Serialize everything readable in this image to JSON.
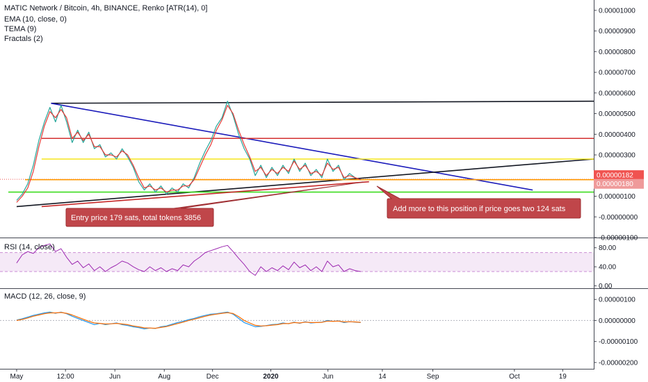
{
  "chart_data": [
    {
      "type": "line",
      "panel": "price",
      "title": "MATIC Network / Bitcoin, 4h, BINANCE, Renko [ATR(14), 0]",
      "indicators": [
        "EMA (10, close, 0)",
        "TEMA (9)",
        "Fractals (2)"
      ],
      "ylim": [
        -1e-06,
        1.05e-05
      ],
      "y_ticks": [
        "0.00001000",
        "0.00000900",
        "0.00000800",
        "0.00000700",
        "0.00000600",
        "0.00000500",
        "0.00000400",
        "0.00000300",
        "0.00000200",
        "0.00000100",
        "-0.00000000",
        "-0.00000100"
      ],
      "y_tick_values": [
        1e-05,
        9e-06,
        8e-06,
        7e-06,
        6e-06,
        5e-06,
        4e-06,
        3e-06,
        2e-06,
        1e-06,
        0.0,
        -1e-06
      ],
      "x_ticks": [
        "May",
        "12:00",
        "Jun",
        "Aug",
        "Dec",
        "2020",
        "Jun",
        "14",
        "Sep",
        "Oct",
        "19"
      ],
      "x_tick_index": [
        0,
        8.8,
        17.7,
        26.6,
        35.3,
        45.8,
        56.1,
        65.9,
        75.0,
        89.7,
        98.4
      ],
      "x_range": [
        -3,
        104
      ],
      "series_x": [
        0,
        1,
        2,
        3,
        4,
        5,
        6,
        7,
        8,
        9,
        10,
        11,
        12,
        13,
        14,
        15,
        16,
        17,
        18,
        19,
        20,
        21,
        22,
        23,
        24,
        25,
        26,
        27,
        28,
        29,
        30,
        31,
        32,
        33,
        34,
        35,
        36,
        37,
        38,
        39,
        40,
        41,
        42,
        43,
        44,
        45,
        46,
        47,
        48,
        49,
        50,
        51,
        52,
        53,
        54,
        55,
        56,
        57,
        58,
        59,
        60,
        61,
        62
      ],
      "series": [
        {
          "name": "",
          "color": "#26a69a",
          "values": [
            8e-07,
            1.1e-06,
            1.6e-06,
            2.5e-06,
            3.7e-06,
            4.6e-06,
            5.3e-06,
            4.6e-06,
            5.4e-06,
            4.6e-06,
            3.6e-06,
            4.2e-06,
            3.6e-06,
            4.1e-06,
            3.3e-06,
            3.5e-06,
            2.9e-06,
            3.1e-06,
            2.8e-06,
            3.3e-06,
            2.9e-06,
            2.4e-06,
            1.7e-06,
            1.3e-06,
            1.6e-06,
            1.2e-06,
            1.5e-06,
            1.1e-06,
            1.4e-06,
            1.2e-06,
            1.6e-06,
            1.4e-06,
            1.9e-06,
            2.6e-06,
            3.2e-06,
            3.7e-06,
            4.4e-06,
            4.8e-06,
            5.6e-06,
            4.9e-06,
            4e-06,
            3.3e-06,
            2.8e-06,
            2e-06,
            2.5e-06,
            1.9e-06,
            2.4e-06,
            2e-06,
            2.5e-06,
            2.1e-06,
            2.8e-06,
            2.2e-06,
            2.6e-06,
            2e-06,
            2.3e-06,
            1.9e-06,
            2.8e-06,
            2.2e-06,
            2.5e-06,
            1.8e-06,
            2.1e-06,
            1.9e-06,
            1.8e-06
          ]
        },
        {
          "name": "",
          "color": "#e53935",
          "values": [
            7e-07,
            1e-06,
            1.4e-06,
            2.2e-06,
            3.4e-06,
            4.4e-06,
            5.1e-06,
            4.8e-06,
            5.2e-06,
            4.8e-06,
            3.8e-06,
            4.1e-06,
            3.7e-06,
            4e-06,
            3.4e-06,
            3.4e-06,
            3e-06,
            3e-06,
            2.9e-06,
            3.2e-06,
            3e-06,
            2.5e-06,
            1.9e-06,
            1.4e-06,
            1.5e-06,
            1.3e-06,
            1.4e-06,
            1.2e-06,
            1.3e-06,
            1.3e-06,
            1.5e-06,
            1.5e-06,
            1.8e-06,
            2.4e-06,
            3e-06,
            3.5e-06,
            4.2e-06,
            4.7e-06,
            5.4e-06,
            5e-06,
            4.2e-06,
            3.5e-06,
            2.9e-06,
            2.2e-06,
            2.4e-06,
            2e-06,
            2.3e-06,
            2.1e-06,
            2.4e-06,
            2.2e-06,
            2.7e-06,
            2.3e-06,
            2.5e-06,
            2.1e-06,
            2.2e-06,
            2e-06,
            2.6e-06,
            2.3e-06,
            2.4e-06,
            1.9e-06,
            2e-06,
            1.9e-06,
            1.8e-06
          ]
        }
      ],
      "trendlines": [
        {
          "color": "#131722",
          "x": [
            6.2,
            104
          ],
          "y": [
            5.5e-06,
            5.6e-06
          ]
        },
        {
          "color": "#1a1aba",
          "x": [
            6.2,
            93
          ],
          "y": [
            5.5e-06,
            1.3e-06
          ]
        },
        {
          "color": "#131722",
          "x": [
            0,
            104
          ],
          "y": [
            5e-07,
            2.8e-06
          ]
        },
        {
          "color": "#d32f2f",
          "x": [
            4.5,
            104
          ],
          "y": [
            3.8e-06,
            3.8e-06
          ]
        },
        {
          "color": "#f5e61b",
          "x": [
            4.5,
            104
          ],
          "y": [
            2.8e-06,
            2.8e-06
          ]
        },
        {
          "color": "#ff9800",
          "x": [
            1.5,
            104
          ],
          "y": [
            1.8e-06,
            1.8e-06
          ]
        },
        {
          "color": "#3bdc1e",
          "x": [
            -1.5,
            104
          ],
          "y": [
            1.2e-06,
            1.2e-06
          ]
        },
        {
          "color": "#c62828",
          "x": [
            4.5,
            63.5
          ],
          "y": [
            5e-07,
            1.7e-06
          ]
        }
      ],
      "price_labels": [
        {
          "value": 1.82e-06,
          "text": "0.00000182",
          "color": "#f05350"
        },
        {
          "value": 1.8e-06,
          "text": "0.00000180",
          "color": "#ef9a9a"
        }
      ],
      "annotations": [
        {
          "text": "Entry price 179 sats, total tokens 3856",
          "color": "#c0464a"
        },
        {
          "text": "Add more to this position if price goes two 124 sats",
          "color": "#c0464a"
        }
      ]
    },
    {
      "type": "line",
      "panel": "rsi",
      "title": "RSI (14, close)",
      "ylim": [
        -5,
        100
      ],
      "y_ticks": [
        "80.00",
        "40.00",
        "0.00"
      ],
      "y_tick_values": [
        80,
        40,
        0
      ],
      "band": [
        30,
        70
      ],
      "series": [
        {
          "name": "",
          "color": "#9c27b0",
          "values": [
            48,
            65,
            72,
            68,
            80,
            85,
            88,
            72,
            78,
            60,
            45,
            52,
            38,
            46,
            32,
            40,
            30,
            38,
            44,
            52,
            48,
            40,
            34,
            30,
            40,
            32,
            38,
            30,
            36,
            32,
            44,
            40,
            52,
            60,
            70,
            74,
            78,
            82,
            85,
            72,
            58,
            45,
            30,
            22,
            40,
            30,
            38,
            32,
            42,
            34,
            50,
            38,
            44,
            32,
            40,
            30,
            52,
            40,
            44,
            30,
            36,
            32,
            30
          ]
        }
      ]
    },
    {
      "type": "line",
      "panel": "macd",
      "title": "MACD (12, 26, close, 9)",
      "ylim": [
        -2.3e-06,
        1.5e-06
      ],
      "y_ticks": [
        "0.00000100",
        "0.00000000",
        "-0.00000100",
        "-0.00000200"
      ],
      "y_tick_values": [
        1e-06,
        0.0,
        -1e-06,
        -2e-06
      ],
      "series": [
        {
          "name": "",
          "color": "#2196f3",
          "values": [
            2e-08,
            8e-08,
            1.6e-07,
            2.4e-07,
            3e-07,
            3.6e-07,
            4e-07,
            3.4e-07,
            4e-07,
            3.2e-07,
            2e-07,
            1e-07,
            0.0,
            -1e-07,
            -2e-07,
            -1.4e-07,
            -2e-07,
            -1.6e-07,
            -1.2e-07,
            -2e-07,
            -2.4e-07,
            -3e-07,
            -3.4e-07,
            -4e-07,
            -3.6e-07,
            -3.8e-07,
            -3e-07,
            -2.6e-07,
            -1.8e-07,
            -1e-07,
            -4e-08,
            4e-08,
            1e-07,
            1.8e-07,
            2.4e-07,
            3e-07,
            3.2e-07,
            3.6e-07,
            4e-07,
            3e-07,
            1e-07,
            -1e-07,
            -2e-07,
            -3e-07,
            -2.8e-07,
            -2.4e-07,
            -2e-07,
            -1.8e-07,
            -1.2e-07,
            -1.6e-07,
            -8e-08,
            -1.4e-07,
            -6e-08,
            -1.2e-07,
            -1e-07,
            -8e-08,
            0.0,
            -4e-08,
            -2e-08,
            -1e-07,
            -6e-08,
            -8e-08,
            -1e-07
          ]
        },
        {
          "name": "",
          "color": "#ff6d00",
          "values": [
            0.0,
            5e-08,
            1.2e-07,
            2e-07,
            2.6e-07,
            3.2e-07,
            3.6e-07,
            3.6e-07,
            3.8e-07,
            3.4e-07,
            2.6e-07,
            1.6e-07,
            6e-08,
            -4e-08,
            -1.2e-07,
            -1.4e-07,
            -1.7e-07,
            -1.6e-07,
            -1.4e-07,
            -1.7e-07,
            -2e-07,
            -2.6e-07,
            -3e-07,
            -3.5e-07,
            -3.6e-07,
            -3.7e-07,
            -3.3e-07,
            -2.9e-07,
            -2.2e-07,
            -1.5e-07,
            -8e-08,
            0.0,
            6e-08,
            1.3e-07,
            2e-07,
            2.6e-07,
            3e-07,
            3.4e-07,
            3.7e-07,
            3.3e-07,
            1.8e-07,
            0.0,
            -1.2e-07,
            -2.3e-07,
            -2.6e-07,
            -2.5e-07,
            -2.2e-07,
            -2e-07,
            -1.5e-07,
            -1.5e-07,
            -1e-07,
            -1.2e-07,
            -8e-08,
            -1e-07,
            -1e-07,
            -9e-08,
            -3e-08,
            -4e-08,
            -3e-08,
            -7e-08,
            -6e-08,
            -7e-08,
            -9e-08
          ]
        }
      ]
    }
  ]
}
